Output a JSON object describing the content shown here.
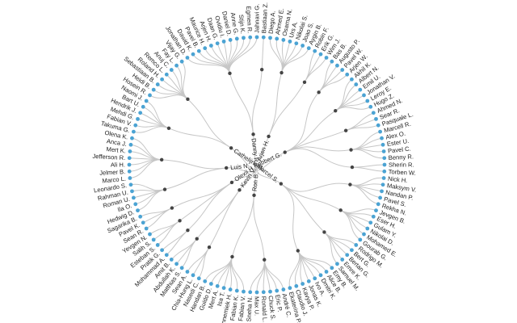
{
  "colors": {
    "leaf": "#4ba3d3",
    "internal": "#444444",
    "link": "#c6c6c6",
    "text": "#222222"
  },
  "tree": {
    "name": "",
    "children": [
      {
        "name": "Arjen H.",
        "children": [
          {
            "name": "",
            "children": [
              {
                "name": "Diego A."
              },
              {
                "name": "Ahmed E."
              },
              {
                "name": "Osama N."
              },
              {
                "name": "Urs A."
              },
              {
                "name": "Nikolai S."
              },
              {
                "name": "Joao S."
              },
              {
                "name": "Aygin B."
              }
            ]
          },
          {
            "name": "",
            "children": [
              {
                "name": "Robin F."
              },
              {
                "name": "Erik G."
              },
              {
                "name": "Wim J."
              }
            ]
          }
        ]
      },
      {
        "name": "Robbert G.",
        "children": [
          {
            "name": "",
            "children": [
              {
                "name": "Bas B."
              },
              {
                "name": "Augusto P."
              },
              {
                "name": "Pavel W."
              },
              {
                "name": "Arjen W."
              }
            ]
          },
          {
            "name": "",
            "children": [
              {
                "name": "Akhil K."
              },
              {
                "name": "Albert N."
              },
              {
                "name": "Emil U."
              },
              {
                "name": "Jonathan V."
              },
              {
                "name": "Leroy E."
              },
              {
                "name": "Hugo Z."
              }
            ]
          },
          {
            "name": "",
            "children": [
              {
                "name": "Ahmed N."
              },
              {
                "name": "Sear R."
              },
              {
                "name": "Pasquale L."
              }
            ]
          },
          {
            "name": "",
            "children": [
              {
                "name": "Marcell R."
              },
              {
                "name": "Alex O."
              },
              {
                "name": "Ester U."
              },
              {
                "name": "Pavel C."
              },
              {
                "name": "Benny R."
              }
            ]
          },
          {
            "name": "",
            "children": [
              {
                "name": "Sherin R."
              },
              {
                "name": "Torben W."
              }
            ]
          }
        ]
      },
      {
        "name": "Marcel S.",
        "children": [
          {
            "name": "",
            "children": [
              {
                "name": "Nick H."
              },
              {
                "name": "Maksym V."
              },
              {
                "name": "Nandan P."
              },
              {
                "name": "Pavel S."
              },
              {
                "name": "Rekha N."
              }
            ]
          },
          {
            "name": "",
            "children": [
              {
                "name": "Jevgen B."
              },
              {
                "name": "Eser H."
              },
              {
                "name": "Gulam Y."
              },
              {
                "name": "Nikolai D."
              },
              {
                "name": "Mohamed E."
              },
              {
                "name": "Gourab G."
              }
            ]
          },
          {
            "name": "",
            "children": [
              {
                "name": "Rodrigo M."
              },
              {
                "name": "Bert G."
              },
              {
                "name": "Bertan G."
              },
              {
                "name": "Emre K."
              },
              {
                "name": "Samuel M."
              }
            ]
          },
          {
            "name": "",
            "children": [
              {
                "name": "Emy B."
              },
              {
                "name": "Alice B."
              },
              {
                "name": "Dmitri K."
              },
              {
                "name": "Ivo A."
              },
              {
                "name": "Jonas K."
              },
              {
                "name": "Kavya P."
              },
              {
                "name": "Claudio J."
              },
              {
                "name": "Ekaterina P."
              }
            ]
          }
        ]
      },
      {
        "name": "Ron B.",
        "children": [
          {
            "name": "",
            "children": [
              {
                "name": "André C."
              },
              {
                "name": "Eric P."
              },
              {
                "name": "Chuck S."
              },
              {
                "name": "Ronald L."
              },
              {
                "name": "Max U."
              },
              {
                "name": "Sneha N."
              }
            ]
          },
          {
            "name": "",
            "children": [
              {
                "name": "Fabian V."
              },
              {
                "name": "Fabian K."
              },
              {
                "name": "Annemiek H."
              },
              {
                "name": "Isa T."
              },
              {
                "name": "Mert A."
              },
              {
                "name": "Guido D."
              },
              {
                "name": "Handan B."
              }
            ]
          }
        ]
      },
      {
        "name": "Kevin V.",
        "children": [
          {
            "name": "",
            "children": [
              {
                "name": "Nasedi C."
              },
              {
                "name": "Chia-Hung L."
              },
              {
                "name": "Sean A."
              }
            ]
          },
          {
            "name": "",
            "children": [
              {
                "name": "Matthias S."
              },
              {
                "name": "Abdullah K."
              },
              {
                "name": "Amit B."
              }
            ]
          }
        ]
      },
      {
        "name": "Olexii H.",
        "children": [
          {
            "name": "",
            "children": [
              {
                "name": "Mohammad A."
              },
              {
                "name": "Pratik G."
              }
            ]
          },
          {
            "name": "",
            "children": [
              {
                "name": "Esteban S."
              },
              {
                "name": "Salih S."
              },
              {
                "name": "Yevgen N."
              }
            ]
          },
          {
            "name": "",
            "children": [
              {
                "name": "Sean R."
              },
              {
                "name": "Pavel K."
              },
              {
                "name": "Sagarika B."
              }
            ]
          }
        ]
      },
      {
        "name": "Luis N.",
        "children": [
          {
            "name": "",
            "children": [
              {
                "name": "Hedwig D."
              },
              {
                "name": "Ila O."
              },
              {
                "name": "Roman U."
              },
              {
                "name": "Rahman U."
              },
              {
                "name": "Leonardo S."
              }
            ]
          },
          {
            "name": "",
            "children": [
              {
                "name": "Marco L."
              },
              {
                "name": "Jelmer B."
              },
              {
                "name": "Ali H."
              },
              {
                "name": "Jefferson R."
              },
              {
                "name": "Mert K."
              },
              {
                "name": "Anca J."
              },
              {
                "name": "Olena K."
              }
            ]
          }
        ]
      },
      {
        "name": "Cathelijne B.",
        "children": [
          {
            "name": "",
            "children": [
              {
                "name": "Takuma G."
              },
              {
                "name": "Fabian V."
              },
              {
                "name": "Mehdi G."
              },
              {
                "name": "Hendrik J."
              },
              {
                "name": "Bart U."
              },
              {
                "name": "Naomi J."
              }
            ]
          },
          {
            "name": "",
            "children": [
              {
                "name": "Hosein R."
              },
              {
                "name": "Heidi B."
              },
              {
                "name": "Sebastiaan B."
              },
              {
                "name": "Roland H."
              },
              {
                "name": "Remco L."
              },
              {
                "name": "Anuj C."
              },
              {
                "name": "Fay L."
              },
              {
                "name": "Vijay G."
              }
            ]
          }
        ]
      },
      {
        "name": "Danny R.",
        "children": [
          {
            "name": "",
            "children": [
              {
                "name": "Jonathan D."
              },
              {
                "name": "Dawid K."
              },
              {
                "name": "Pavel B."
              },
              {
                "name": "Maurice H."
              },
              {
                "name": "Arjen H."
              },
              {
                "name": "Daan G."
              },
              {
                "name": "Ovidiu I."
              },
              {
                "name": "Daniel D."
              },
              {
                "name": "Anne G."
              },
              {
                "name": "Stijn K."
              },
              {
                "name": "Egmen R."
              },
              {
                "name": "Jahnavi G."
              }
            ]
          },
          {
            "name": "",
            "children": [
              {
                "name": "Bastiaan Z."
              }
            ]
          }
        ]
      }
    ]
  }
}
